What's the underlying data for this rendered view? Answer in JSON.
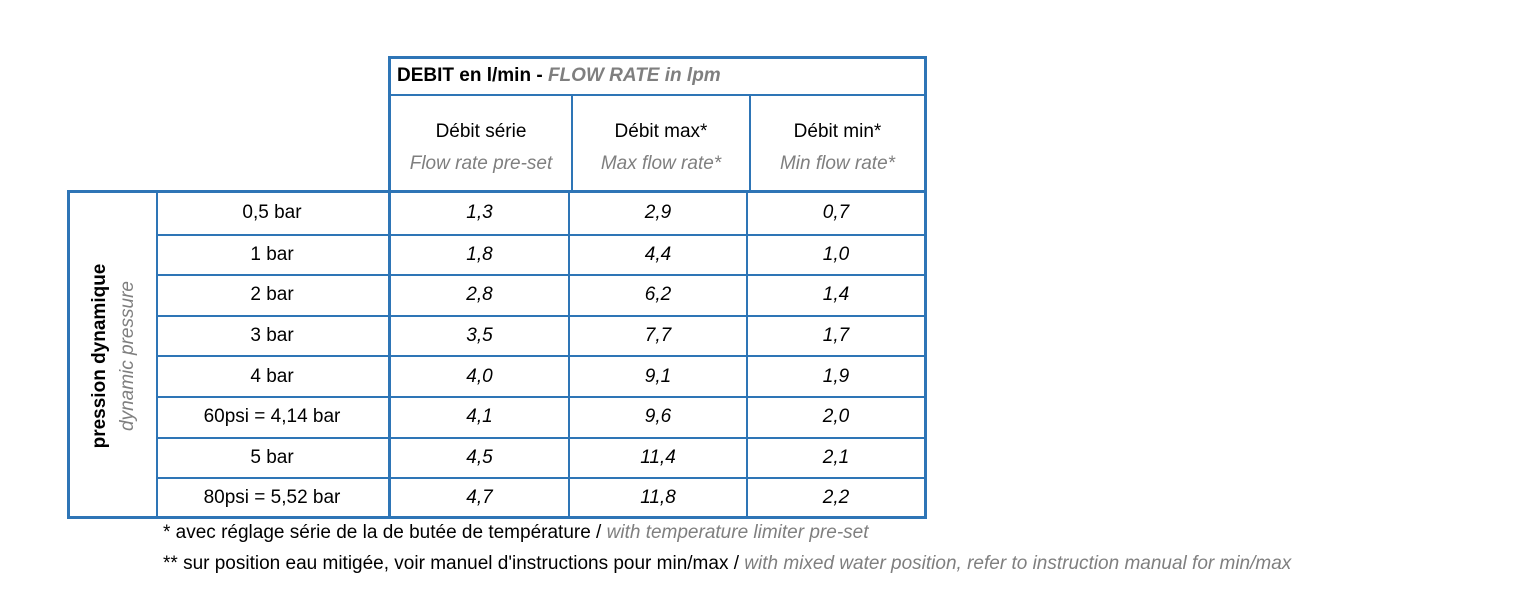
{
  "header": {
    "title_fr": "DEBIT en l/min - ",
    "title_en": "FLOW RATE in lpm",
    "columns": [
      {
        "fr": "Débit série",
        "en": "Flow rate pre-set"
      },
      {
        "fr": "Débit max*",
        "en": "Max flow rate*"
      },
      {
        "fr": "Débit min*",
        "en": "Min flow rate*"
      }
    ]
  },
  "side_label": {
    "fr": "pression dynamique",
    "en": "dynamic pressure"
  },
  "rows": [
    {
      "pressure": "0,5 bar",
      "preset": "1,3",
      "max": "2,9",
      "min": "0,7"
    },
    {
      "pressure": "1 bar",
      "preset": "1,8",
      "max": "4,4",
      "min": "1,0"
    },
    {
      "pressure": "2 bar",
      "preset": "2,8",
      "max": "6,2",
      "min": "1,4"
    },
    {
      "pressure": "3 bar",
      "preset": "3,5",
      "max": "7,7",
      "min": "1,7"
    },
    {
      "pressure": "4 bar",
      "preset": "4,0",
      "max": "9,1",
      "min": "1,9"
    },
    {
      "pressure": "60psi = 4,14 bar",
      "preset": "4,1",
      "max": "9,6",
      "min": "2,0"
    },
    {
      "pressure": "5 bar",
      "preset": "4,5",
      "max": "11,4",
      "min": "2,1"
    },
    {
      "pressure": "80psi = 5,52 bar",
      "preset": "4,7",
      "max": "11,8",
      "min": "2,2"
    }
  ],
  "footnotes": [
    {
      "fr": "* avec réglage série de la de butée de température / ",
      "en": "with temperature limiter pre-set"
    },
    {
      "fr": "** sur position eau mitigée, voir manuel d'instructions pour min/max / ",
      "en": "with mixed water position, refer to instruction manual for min/max"
    }
  ],
  "colors": {
    "border": "#2e75b6",
    "secondary_text": "#7f7f7f"
  }
}
